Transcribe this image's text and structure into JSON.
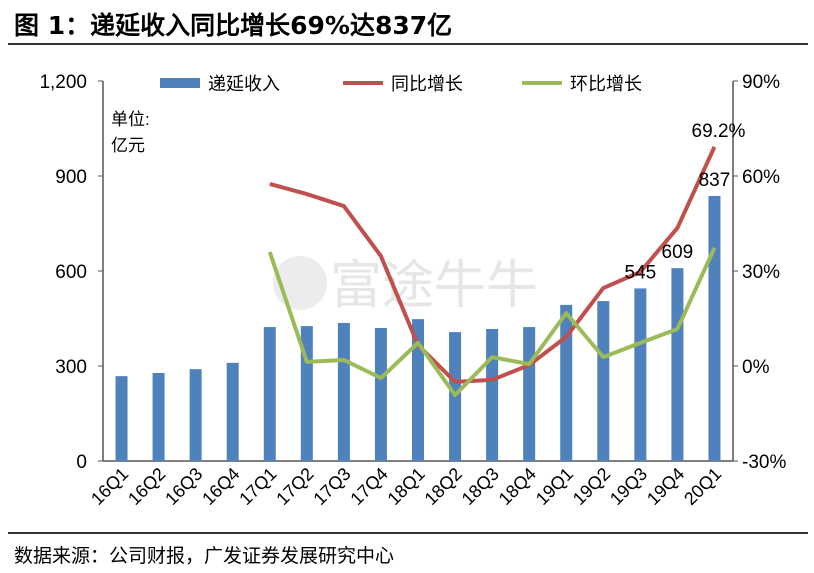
{
  "title": "图 1：递延收入同比增长69%达837亿",
  "source": "数据来源：公司财报，广发证券发展研究中心",
  "watermark": "富途牛牛",
  "colors": {
    "bar": "#4f81bd",
    "yoy": "#c0504d",
    "qoq": "#9bbb59"
  },
  "chart_data": {
    "type": "bar+line",
    "unit_label": [
      "单位:",
      "亿元"
    ],
    "categories": [
      "16Q1",
      "16Q2",
      "16Q3",
      "16Q4",
      "17Q1",
      "17Q2",
      "17Q3",
      "17Q4",
      "18Q1",
      "18Q2",
      "18Q3",
      "18Q4",
      "19Q1",
      "19Q2",
      "19Q3",
      "19Q4",
      "20Q1"
    ],
    "series": [
      {
        "name": "递延收入",
        "type": "bar",
        "axis": "left",
        "values": [
          268,
          278,
          290,
          310,
          423,
          426,
          436,
          420,
          448,
          407,
          417,
          423,
          493,
          505,
          545,
          609,
          837
        ]
      },
      {
        "name": "同比增长",
        "type": "line",
        "axis": "right",
        "values": [
          null,
          null,
          null,
          null,
          57.5,
          54.3,
          50.5,
          34.7,
          6.6,
          -5.0,
          -4.4,
          0.3,
          9.2,
          24.6,
          29.7,
          43.6,
          69.2
        ]
      },
      {
        "name": "环比增长",
        "type": "line",
        "axis": "right",
        "values": [
          null,
          null,
          null,
          null,
          36.0,
          1.3,
          1.9,
          -3.8,
          7.3,
          -9.2,
          2.8,
          0.6,
          16.7,
          2.8,
          7.3,
          11.7,
          37.3
        ]
      }
    ],
    "data_labels": [
      {
        "category": "19Q3",
        "text": "545"
      },
      {
        "category": "19Q4",
        "text": "609"
      },
      {
        "category": "20Q1",
        "text": "837"
      },
      {
        "category": "20Q1",
        "text": "69.2%"
      }
    ],
    "y_left": {
      "ylim": [
        0,
        1200
      ],
      "ticks": [
        0,
        300,
        600,
        900,
        1200
      ],
      "tick_labels": [
        "0",
        "300",
        "600",
        "900",
        "1,200"
      ]
    },
    "y_right": {
      "ylim": [
        -30,
        90
      ],
      "ticks": [
        -30,
        0,
        30,
        60,
        90
      ],
      "tick_labels": [
        "-30%",
        "0%",
        "30%",
        "60%",
        "90%"
      ]
    },
    "legend": "top",
    "grid": false
  }
}
